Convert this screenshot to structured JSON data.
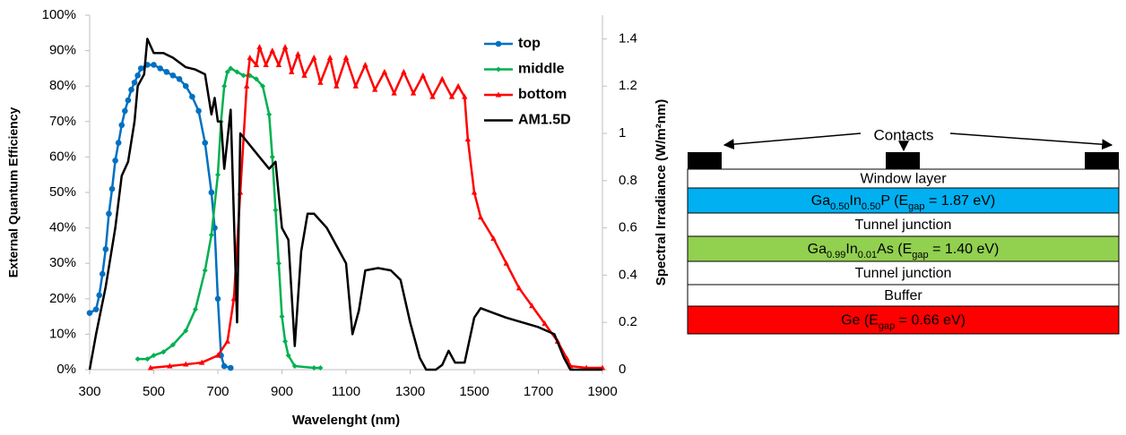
{
  "chart_data": {
    "type": "line",
    "xlabel": "Wavelenght (nm)",
    "ylabel": "External Quantum Efficiency",
    "y2label": "Spectral Irradiance (W/m²nm)",
    "xlim": [
      300,
      1900
    ],
    "xticks": [
      300,
      500,
      700,
      900,
      1100,
      1300,
      1500,
      1700,
      1900
    ],
    "ylim": [
      0,
      100
    ],
    "yticks": [
      {
        "value": 0,
        "label": "0%"
      },
      {
        "value": 10,
        "label": "10%"
      },
      {
        "value": 20,
        "label": "20%"
      },
      {
        "value": 30,
        "label": "30%"
      },
      {
        "value": 40,
        "label": "40%"
      },
      {
        "value": 50,
        "label": "50%"
      },
      {
        "value": 60,
        "label": "60%"
      },
      {
        "value": 70,
        "label": "70%"
      },
      {
        "value": 80,
        "label": "80%"
      },
      {
        "value": 90,
        "label": "90%"
      },
      {
        "value": 100,
        "label": "100%"
      }
    ],
    "y2lim": [
      0,
      1.5
    ],
    "y2ticks": [
      0,
      0.2,
      0.4,
      0.6,
      0.8,
      1,
      1.2,
      1.4
    ],
    "legend": "upper right",
    "series": [
      {
        "name": "top",
        "color": "#0070c0",
        "marker": "circle",
        "x": [
          300,
          320,
          330,
          340,
          350,
          360,
          370,
          380,
          390,
          400,
          410,
          420,
          430,
          440,
          450,
          460,
          480,
          500,
          520,
          540,
          560,
          580,
          600,
          620,
          640,
          660,
          680,
          690,
          700,
          710,
          720,
          740
        ],
        "values": [
          16,
          17,
          21,
          27,
          34,
          44,
          51,
          59,
          64,
          69,
          73,
          76,
          79,
          81,
          83,
          85,
          86,
          86,
          85,
          84,
          83,
          82,
          80,
          77,
          73,
          64,
          50,
          40,
          20,
          4,
          1,
          0.5
        ]
      },
      {
        "name": "middle",
        "color": "#00b050",
        "marker": "diamond",
        "x": [
          450,
          480,
          500,
          530,
          560,
          600,
          630,
          660,
          680,
          700,
          710,
          720,
          730,
          740,
          760,
          780,
          800,
          820,
          840,
          860,
          870,
          880,
          890,
          900,
          910,
          920,
          940,
          1000,
          1020
        ],
        "values": [
          3,
          3,
          4,
          5,
          7,
          11,
          17,
          28,
          38,
          55,
          70,
          80,
          84,
          85,
          84,
          83,
          83,
          82,
          80,
          72,
          60,
          45,
          30,
          15,
          8,
          4,
          1,
          0.5,
          0.5
        ]
      },
      {
        "name": "bottom",
        "color": "#ff0000",
        "marker": "triangle",
        "x": [
          490,
          550,
          600,
          650,
          700,
          730,
          750,
          770,
          790,
          800,
          820,
          830,
          850,
          870,
          890,
          910,
          930,
          950,
          970,
          1000,
          1020,
          1050,
          1070,
          1100,
          1130,
          1160,
          1190,
          1220,
          1250,
          1280,
          1310,
          1340,
          1370,
          1400,
          1430,
          1450,
          1470,
          1480,
          1500,
          1520,
          1560,
          1600,
          1640,
          1680,
          1720,
          1760,
          1790,
          1800,
          1850,
          1900
        ],
        "values": [
          0.5,
          1,
          1.5,
          2,
          4,
          8,
          20,
          50,
          80,
          88,
          86,
          91,
          86,
          90,
          86,
          91,
          84,
          89,
          83,
          88,
          81,
          88,
          80,
          88,
          80,
          86,
          79,
          84,
          78,
          84,
          78,
          83,
          77,
          82,
          77,
          80,
          77,
          65,
          50,
          43,
          37,
          30,
          23,
          18,
          13,
          8,
          3,
          1,
          0.5,
          0.5
        ]
      },
      {
        "name": "AM1.5D",
        "color": "#000000",
        "axis": "y2",
        "x": [
          300,
          320,
          350,
          380,
          400,
          420,
          440,
          450,
          470,
          480,
          500,
          530,
          560,
          600,
          630,
          660,
          680,
          690,
          700,
          710,
          720,
          740,
          760,
          770,
          800,
          830,
          860,
          880,
          900,
          920,
          940,
          960,
          980,
          1000,
          1040,
          1080,
          1100,
          1120,
          1140,
          1160,
          1200,
          1240,
          1270,
          1300,
          1330,
          1350,
          1380,
          1400,
          1420,
          1440,
          1470,
          1500,
          1520,
          1560,
          1600,
          1650,
          1700,
          1750,
          1780,
          1800,
          1900
        ],
        "values": [
          0,
          0.15,
          0.35,
          0.6,
          0.82,
          0.88,
          1.05,
          1.2,
          1.25,
          1.4,
          1.34,
          1.34,
          1.32,
          1.28,
          1.27,
          1.25,
          1.08,
          1.15,
          1.05,
          1.05,
          0.85,
          1.1,
          0.2,
          1.0,
          0.95,
          0.9,
          0.85,
          0.88,
          0.6,
          0.55,
          0.1,
          0.5,
          0.66,
          0.66,
          0.6,
          0.5,
          0.45,
          0.15,
          0.25,
          0.42,
          0.43,
          0.42,
          0.38,
          0.2,
          0.05,
          0,
          0,
          0.02,
          0.08,
          0.03,
          0.03,
          0.22,
          0.26,
          0.24,
          0.22,
          0.2,
          0.18,
          0.15,
          0.05,
          0,
          0
        ]
      }
    ]
  },
  "diagram": {
    "contacts_label": "Contacts",
    "layers": [
      {
        "label": [
          "Window layer"
        ],
        "color": "#ffffff"
      },
      {
        "label": [
          "Ga",
          "0.50",
          "In",
          "0.50",
          "P (E",
          "gap",
          " = 1.87 eV)"
        ],
        "color": "#00b0f0"
      },
      {
        "label": [
          "Tunnel junction"
        ],
        "color": "#ffffff"
      },
      {
        "label": [
          "Ga",
          "0.99",
          "In",
          "0.01",
          "As (E",
          "gap",
          " = 1.40 eV)"
        ],
        "color": "#92d050"
      },
      {
        "label": [
          "Tunnel junction"
        ],
        "color": "#ffffff"
      },
      {
        "label": [
          "Buffer"
        ],
        "color": "#ffffff"
      },
      {
        "label": [
          "Ge (E",
          "gap",
          " = 0.66 eV)"
        ],
        "color": "#ff0000"
      }
    ]
  }
}
